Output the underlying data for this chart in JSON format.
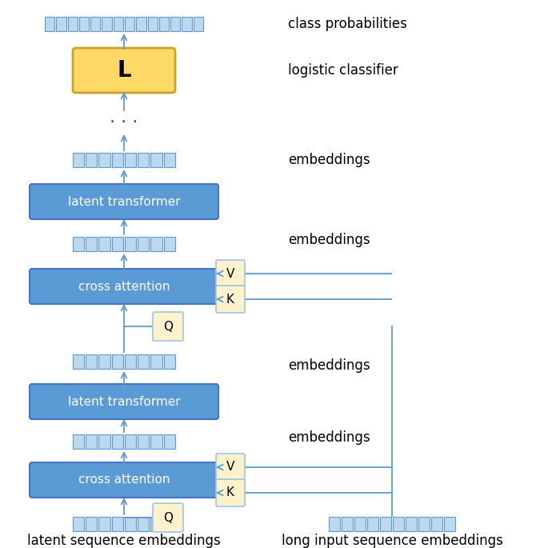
{
  "bg_color": "#ffffff",
  "main_box_color": "#5b9bd5",
  "main_box_edge": "#4472c4",
  "main_box_text_color": "#ffffff",
  "emb_fill": "#bdd7ee",
  "emb_edge": "#5b9bd5",
  "qkv_fill": "#fef2cc",
  "qkv_edge": "#9dc3e6",
  "L_fill": "#ffd966",
  "L_edge": "#c9a227",
  "arrow_color": "#5b9bd5",
  "line_color": "#5b9bd5",
  "labels": {
    "class_prob": "class probabilities",
    "logistic": "logistic classifier",
    "emb": "embeddings",
    "latent_seq": "latent sequence embeddings",
    "long_seq": "long input sequence embeddings"
  }
}
